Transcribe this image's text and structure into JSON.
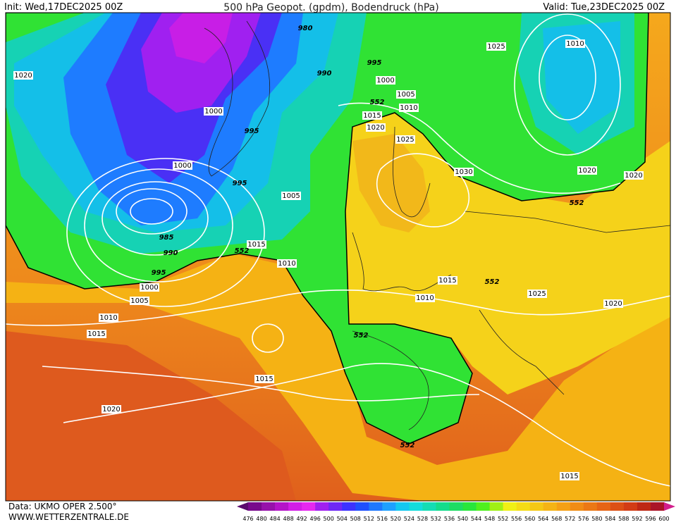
{
  "header": {
    "init": "Init: Wed,17DEC2025 00Z",
    "title": "500 hPa Geopot. (gpdm), Bodendruck (hPa)",
    "valid": "Valid: Tue,23DEC2025 00Z"
  },
  "footer": {
    "data_source": "Data: UKMO OPER 2.500°",
    "website": "WWW.WETTERZENTRALE.DE"
  },
  "isobar_labels": [
    980,
    1020,
    990,
    995,
    1000,
    1025,
    1010,
    1005,
    552,
    1010,
    1000,
    1015,
    995,
    1020,
    1025,
    1000,
    1030,
    1020,
    1020,
    995,
    1005,
    552,
    985,
    1015,
    552,
    990,
    1010,
    995,
    1015,
    552,
    1000,
    1010,
    1025,
    1005,
    1020,
    1010,
    1015,
    552,
    1015,
    1020,
    552,
    1015
  ],
  "colorbar": {
    "labels": [
      476,
      480,
      484,
      488,
      492,
      496,
      500,
      504,
      508,
      512,
      516,
      520,
      524,
      528,
      532,
      536,
      540,
      544,
      548,
      552,
      556,
      560,
      564,
      568,
      572,
      576,
      580,
      584,
      588,
      592,
      596,
      600
    ],
    "colors": [
      "#5a0a6e",
      "#780a8c",
      "#9612aa",
      "#b414c8",
      "#d21ee6",
      "#e628f0",
      "#a020f0",
      "#6e28f5",
      "#3c32ff",
      "#1e50ff",
      "#1e78ff",
      "#1ea0ff",
      "#14c8f0",
      "#14dcdc",
      "#14dcb4",
      "#14dc8c",
      "#1edc64",
      "#28e63c",
      "#50f01e",
      "#a0f014",
      "#f0f014",
      "#f5dc14",
      "#f5c814",
      "#f5b414",
      "#f5a014",
      "#f08c14",
      "#eb7814",
      "#e66414",
      "#dc5014",
      "#d23c14",
      "#be2814",
      "#aa1428",
      "#d21e8c"
    ]
  }
}
